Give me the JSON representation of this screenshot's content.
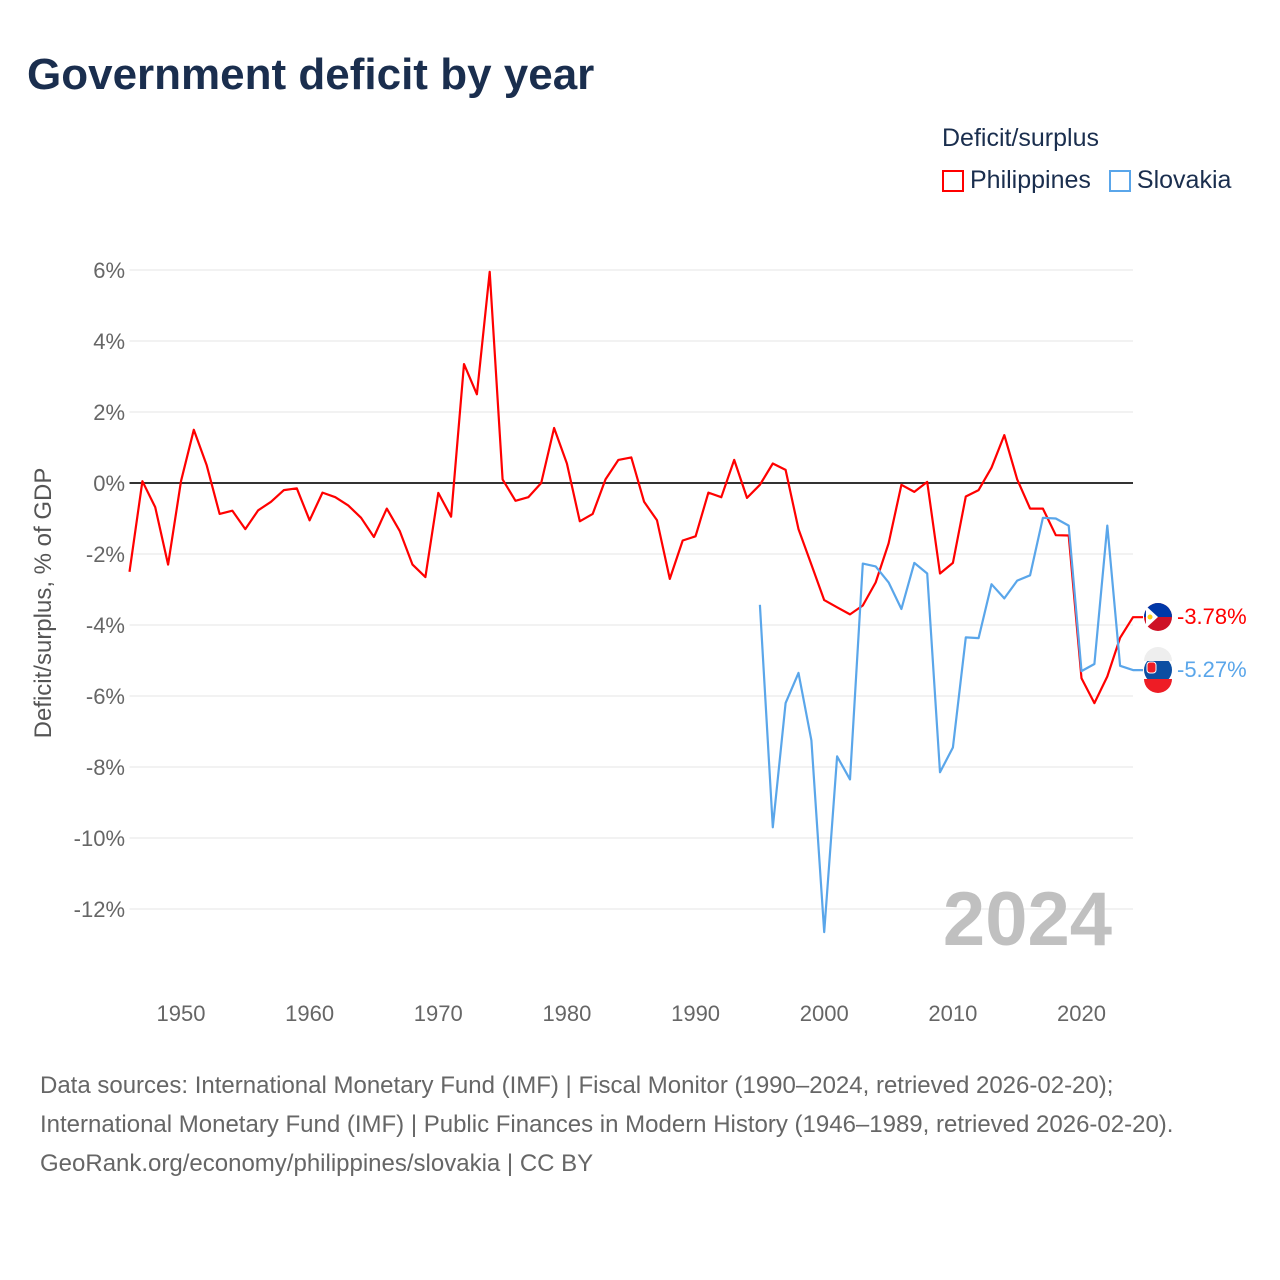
{
  "title": "Government deficit by year",
  "legend": {
    "title": "Deficit/surplus",
    "items": [
      {
        "label": "Philippines",
        "color": "#ff0000"
      },
      {
        "label": "Slovakia",
        "color": "#5aa6ea"
      }
    ]
  },
  "watermark_year": "2024",
  "end_labels": {
    "philippines": "-3.78%",
    "slovakia": "-5.27%"
  },
  "footer": {
    "sources": "Data sources: International Monetary Fund (IMF) | Fiscal Monitor (1990–2024, retrieved 2026-02-20); International Monetary Fund (IMF) | Public Finances in Modern History (1946–1989, retrieved 2026-02-20).",
    "credit": "GeoRank.org/economy/philippines/slovakia | CC BY"
  },
  "chart_data": {
    "type": "line",
    "title": "Government deficit by year",
    "xlabel": "",
    "ylabel": "Deficit/surplus, % of GDP",
    "xlim": [
      1946,
      2024
    ],
    "ylim": [
      -13.8,
      6.3
    ],
    "xticks": [
      1950,
      1960,
      1970,
      1980,
      1990,
      2000,
      2010,
      2020
    ],
    "yticks": [
      6,
      4,
      2,
      0,
      -2,
      -4,
      -6,
      -8,
      -10,
      -12
    ],
    "ytick_labels": [
      "6%",
      "4%",
      "2%",
      "0%",
      "-2%",
      "-4%",
      "-6%",
      "-8%",
      "-10%",
      "-12%"
    ],
    "grid": true,
    "legend_position": "top-right",
    "series": [
      {
        "name": "Philippines",
        "color": "#ff0000",
        "start_year": 1946,
        "values": [
          -2.5,
          0.05,
          -0.68,
          -2.3,
          0.05,
          1.5,
          0.5,
          -0.87,
          -0.78,
          -1.3,
          -0.77,
          -0.53,
          -0.2,
          -0.15,
          -1.05,
          -0.27,
          -0.4,
          -0.63,
          -0.98,
          -1.52,
          -0.72,
          -1.35,
          -2.3,
          -2.65,
          -0.28,
          -0.95,
          3.35,
          2.5,
          5.95,
          0.1,
          -0.5,
          -0.4,
          0.0,
          1.55,
          0.55,
          -1.08,
          -0.87,
          0.1,
          0.65,
          0.72,
          -0.53,
          -1.05,
          -2.7,
          -1.62,
          -1.5,
          -0.27,
          -0.4,
          0.65,
          -0.42,
          -0.05,
          0.55,
          0.37,
          -1.3,
          -2.3,
          -3.3,
          -3.5,
          -3.7,
          -3.45,
          -2.8,
          -1.7,
          -0.05,
          -0.25,
          0.03,
          -2.55,
          -2.25,
          -0.38,
          -0.2,
          0.43,
          1.35,
          0.1,
          -0.72,
          -0.72,
          -1.47,
          -1.48,
          -5.5,
          -6.2,
          -5.45,
          -4.36,
          -3.78
        ]
      },
      {
        "name": "Slovakia",
        "color": "#5aa6ea",
        "start_year": 1995,
        "values": [
          -3.43,
          -9.7,
          -6.2,
          -5.35,
          -7.25,
          -12.65,
          -7.7,
          -8.35,
          -2.27,
          -2.35,
          -2.8,
          -3.55,
          -2.25,
          -2.55,
          -8.15,
          -7.45,
          -4.35,
          -4.37,
          -2.85,
          -3.25,
          -2.75,
          -2.6,
          -0.98,
          -1.0,
          -1.2,
          -5.3,
          -5.1,
          -1.2,
          -5.15,
          -5.27
        ]
      }
    ]
  }
}
